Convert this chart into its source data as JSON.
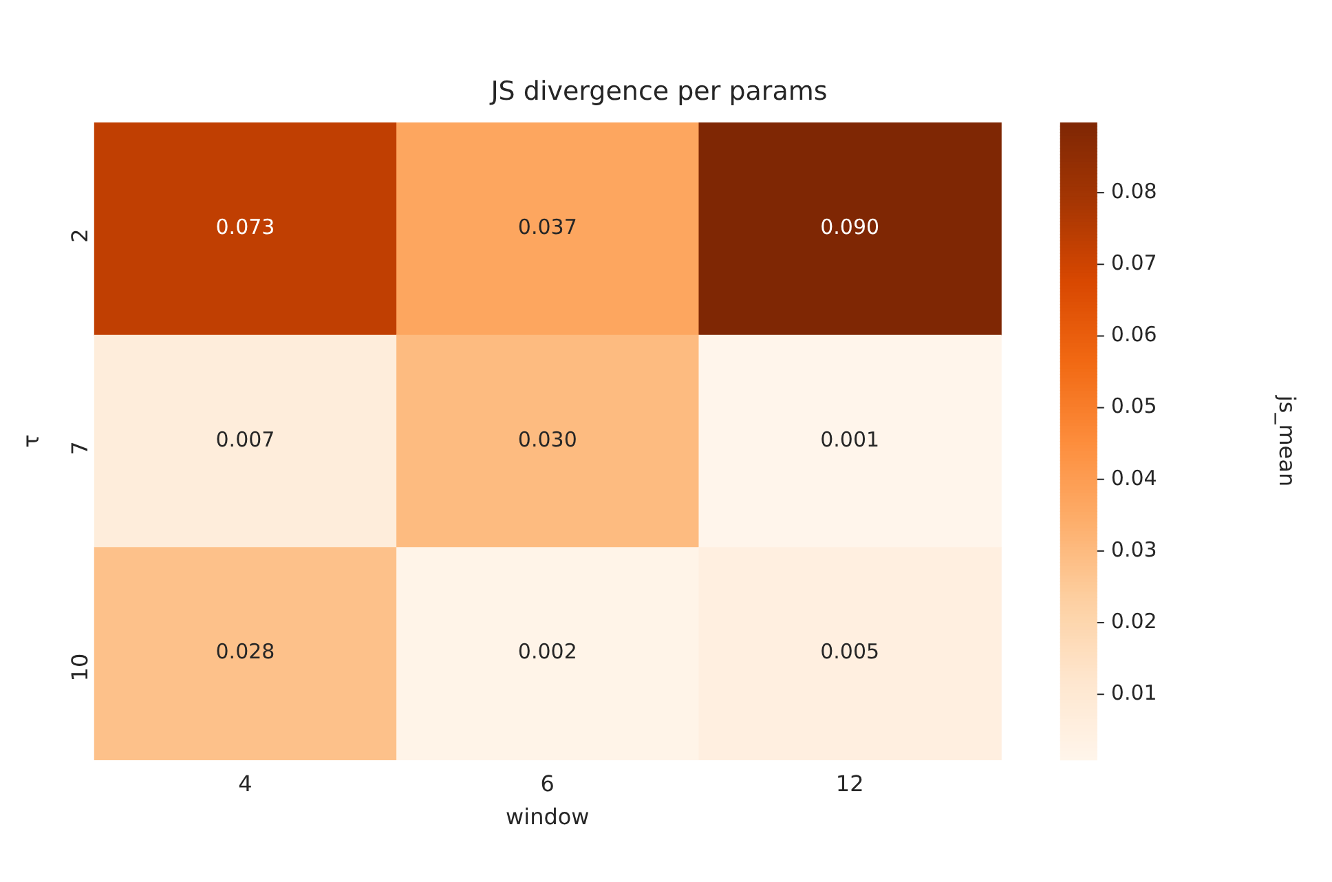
{
  "chart_data": {
    "type": "heatmap",
    "title": "JS divergence per params",
    "xlabel": "window",
    "ylabel": "τ",
    "clabel": "js_mean",
    "categories": [
      "4",
      "6",
      "12"
    ],
    "y_categories": [
      "2",
      "7",
      "10"
    ],
    "cells": [
      [
        0.073,
        0.037,
        0.09
      ],
      [
        0.007,
        0.03,
        0.001
      ],
      [
        0.028,
        0.002,
        0.005
      ]
    ],
    "cell_labels": [
      [
        "0.073",
        "0.037",
        "0.090"
      ],
      [
        "0.007",
        "0.030",
        "0.001"
      ],
      [
        "0.028",
        "0.002",
        "0.005"
      ]
    ],
    "clim": [
      0.0009,
      0.0898
    ],
    "cticks": [
      0.01,
      0.02,
      0.03,
      0.04,
      0.05,
      0.06,
      0.07,
      0.08
    ]
  }
}
